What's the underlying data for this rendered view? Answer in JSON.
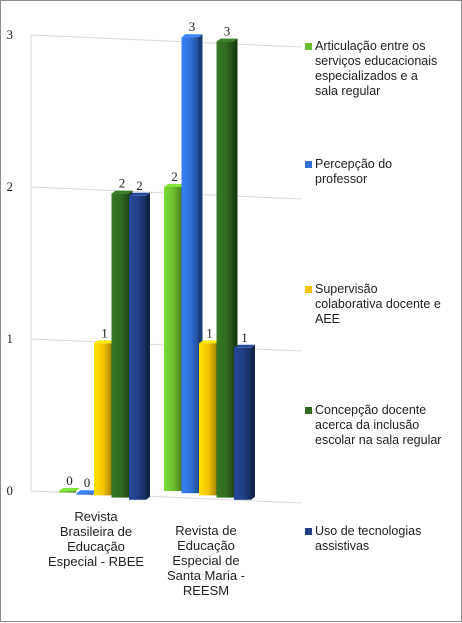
{
  "chart_data": {
    "type": "bar",
    "categories": [
      "Revista Brasileira de Educação Especial - RBEE",
      "Revista de Educação Especial de Santa Maria - REESM"
    ],
    "category_label_lines": [
      [
        "Revista",
        "Brasileira de",
        "Educação",
        "Especial - RBEE"
      ],
      [
        "Revista de",
        "Educação",
        "Especial de",
        "Santa Maria -",
        "REESM"
      ]
    ],
    "series": [
      {
        "name": "Articulação entre os serviços educacionais especializados e a sala regular",
        "legend_lines": [
          "Articulação entre os",
          "serviços educacionais",
          "especializados e a",
          "sala regular"
        ],
        "color": "#6cbf2e",
        "values": [
          0,
          2
        ]
      },
      {
        "name": "Percepção do professor",
        "legend_lines": [
          "Percepção do",
          "professor"
        ],
        "color": "#2f6fd6",
        "values": [
          0,
          3
        ]
      },
      {
        "name": "Supervisão colaborativa docente e AEE",
        "legend_lines": [
          "Supervisão",
          "colaborativa docente e",
          "AEE"
        ],
        "color": "#f5c400",
        "values": [
          1,
          1
        ]
      },
      {
        "name": "Concepção docente acerca da inclusão escolar na sala regular",
        "legend_lines": [
          "Concepção docente",
          "acerca da inclusão",
          "escolar na sala regular"
        ],
        "color": "#2e6b1f",
        "values": [
          2,
          3
        ]
      },
      {
        "name": "Uso de tecnologias assistivas",
        "legend_lines": [
          "Uso de tecnologias",
          "assistivas"
        ],
        "color": "#1f3f86",
        "values": [
          2,
          1
        ]
      }
    ],
    "y_ticks": [
      "0",
      "1",
      "2",
      "3"
    ],
    "ylim": [
      0,
      3
    ],
    "grid": true,
    "legend_position": "right",
    "title": "",
    "xlabel": "",
    "ylabel": ""
  }
}
